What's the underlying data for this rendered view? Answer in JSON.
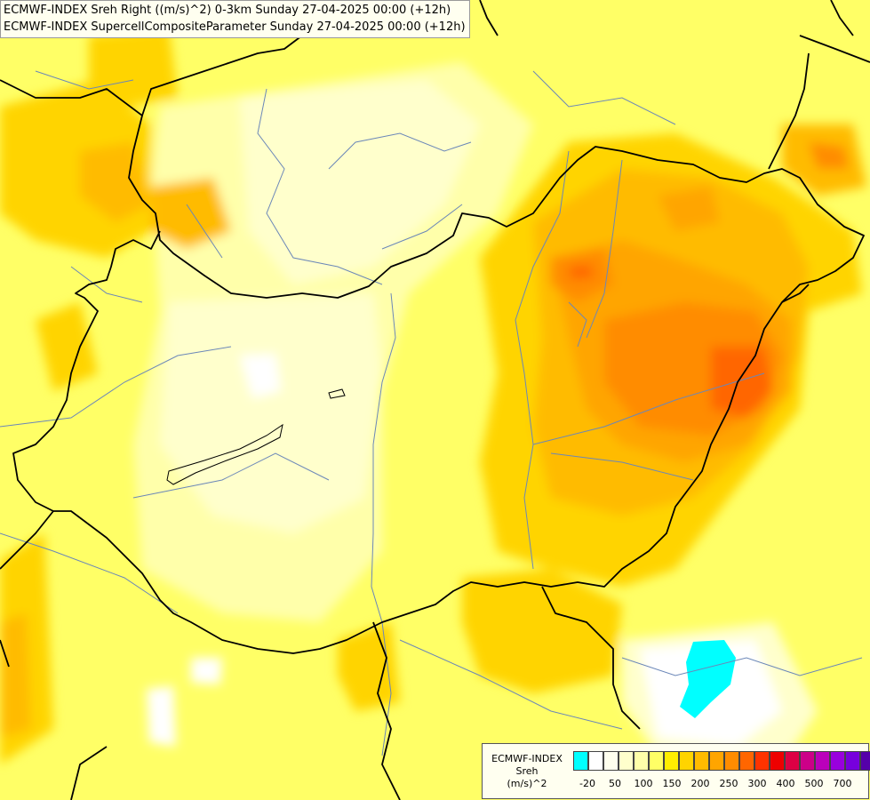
{
  "header": {
    "line1": "ECMWF-INDEX Sreh Right ((m/s)^2) 0-3km Sunday 27-04-2025 00:00 (+12h)",
    "line2": "ECMWF-INDEX SupercellCompositeParameter Sunday 27-04-2025 00:00 (+12h)"
  },
  "legend": {
    "title1": "ECMWF-INDEX",
    "title2": "Sreh",
    "unit": "(m/s)^2",
    "colors": [
      "#00ffff",
      "#ffffff",
      "#ffffee",
      "#ffffcc",
      "#ffffaa",
      "#ffff66",
      "#ffee00",
      "#ffd400",
      "#ffbb00",
      "#ffa500",
      "#ff8c00",
      "#ff6600",
      "#ff3300",
      "#ee0000",
      "#dd0044",
      "#cc0088",
      "#bb00bb",
      "#9900dd",
      "#7700dd",
      "#5500aa",
      "#330088",
      "#000066"
    ],
    "tick_labels": [
      "-20",
      "50",
      "100",
      "150",
      "200",
      "250",
      "300",
      "400",
      "500",
      "700"
    ]
  }
}
